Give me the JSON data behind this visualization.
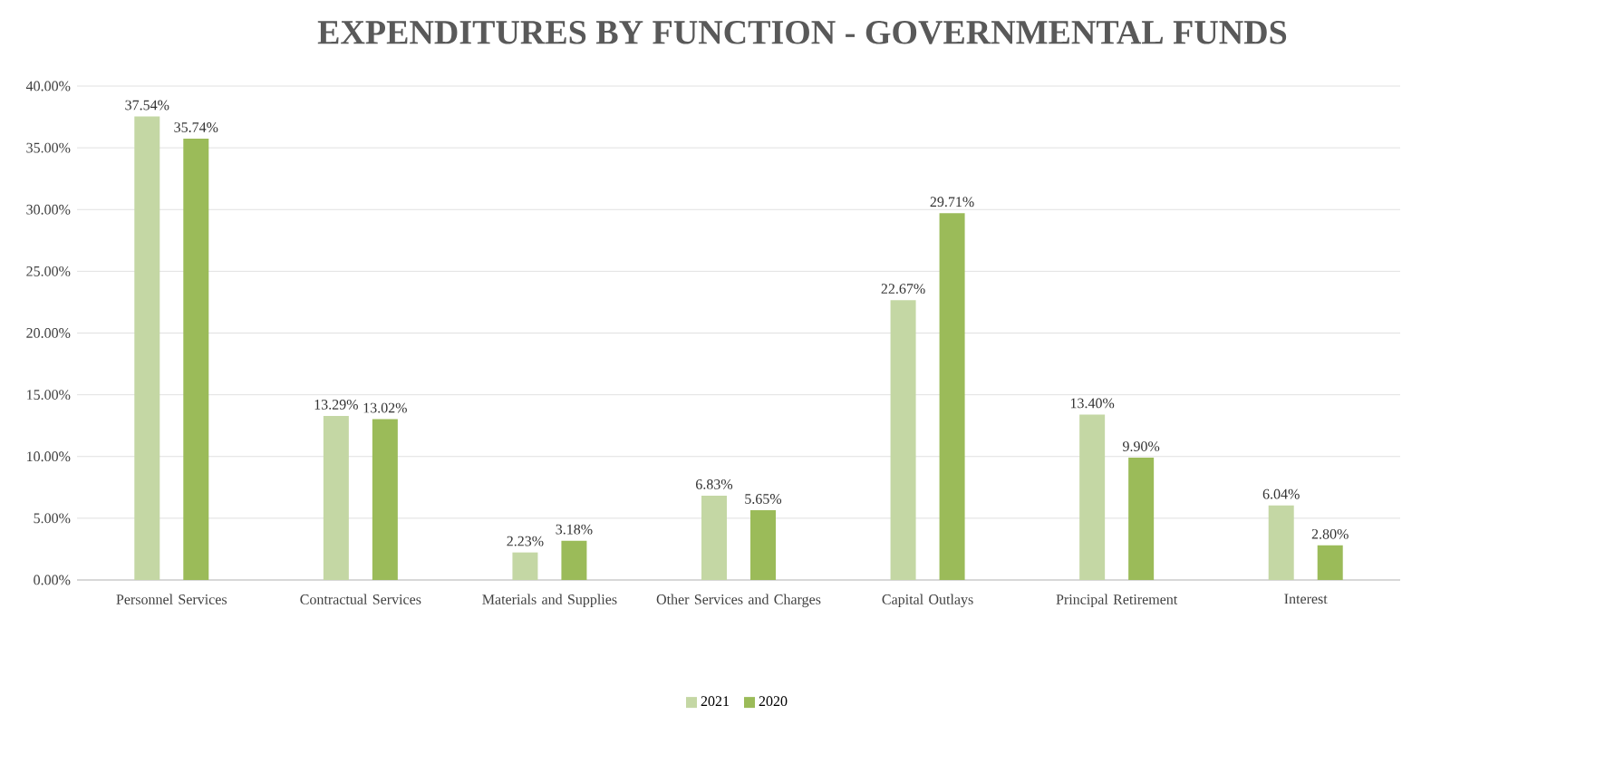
{
  "chart_data": {
    "type": "bar",
    "title": "EXPENDITURES BY FUNCTION -   GOVERNMENTAL FUNDS",
    "categories": [
      "Personnel Services",
      "Contractual Services",
      "Materials and Supplies",
      "Other Services and Charges",
      "Capital Outlays",
      "Principal Retirement",
      "Interest"
    ],
    "series": [
      {
        "name": "2021",
        "color": "#c4d7a4",
        "values": [
          37.54,
          13.29,
          2.23,
          6.83,
          22.67,
          13.4,
          6.04
        ],
        "value_labels": [
          "37.54%",
          "13.29%",
          "2.23%",
          "6.83%",
          "22.67%",
          "13.40%",
          "6.04%"
        ]
      },
      {
        "name": "2020",
        "color": "#9bbb59",
        "values": [
          35.74,
          13.02,
          3.18,
          5.65,
          29.71,
          9.9,
          2.8
        ],
        "value_labels": [
          "35.74%",
          "13.02%",
          "3.18%",
          "5.65%",
          "29.71%",
          "9.90%",
          "2.80%"
        ]
      }
    ],
    "ylim": [
      0,
      40
    ],
    "yticks": [
      {
        "value": 0,
        "label": "0.00%"
      },
      {
        "value": 5,
        "label": "5.00%"
      },
      {
        "value": 10,
        "label": "10.00%"
      },
      {
        "value": 15,
        "label": "15.00%"
      },
      {
        "value": 20,
        "label": "20.00%"
      },
      {
        "value": 25,
        "label": "25.00%"
      },
      {
        "value": 30,
        "label": "30.00%"
      },
      {
        "value": 35,
        "label": "35.00%"
      },
      {
        "value": 40,
        "label": "40.00%"
      }
    ],
    "grid": "y",
    "legend": "bottom"
  }
}
